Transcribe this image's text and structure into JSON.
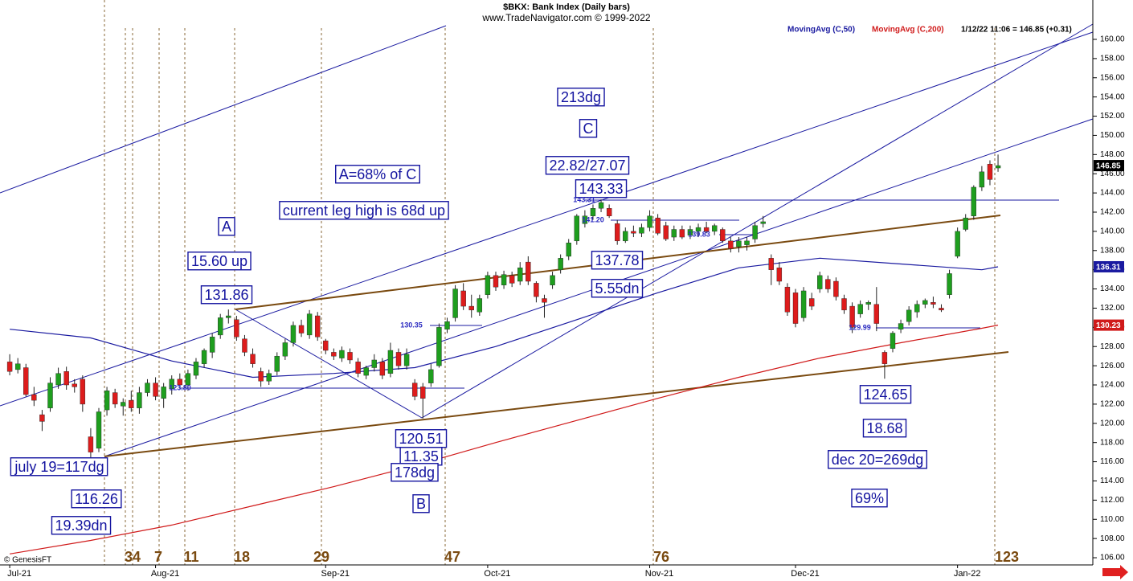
{
  "chart_data": {
    "type": "candlestick",
    "title": "$BKX:  Bank Index  (Daily bars)",
    "subtitle": "www.TradeNavigator.com © 1999-2022",
    "quote": "1/12/22 11:06 = 146.85 (+0.31)",
    "credit": "© GenesisFT",
    "xlim": [
      -1.2,
      133.7
    ],
    "ylim": [
      105.25,
      164.1
    ],
    "xticks": [
      {
        "value": 0,
        "label": "Jul-21"
      },
      {
        "value": 18,
        "label": "Aug-21"
      },
      {
        "value": 39,
        "label": "Sep-21"
      },
      {
        "value": 59,
        "label": "Oct-21"
      },
      {
        "value": 79,
        "label": "Nov-21"
      },
      {
        "value": 97,
        "label": "Dec-21"
      },
      {
        "value": 117,
        "label": "Jan-22"
      }
    ],
    "yticks": [
      {
        "value": 106,
        "label": "106.00"
      },
      {
        "value": 108,
        "label": "108.00"
      },
      {
        "value": 110,
        "label": "110.00"
      },
      {
        "value": 112,
        "label": "112.00"
      },
      {
        "value": 114,
        "label": "114.00"
      },
      {
        "value": 116,
        "label": "116.00"
      },
      {
        "value": 118,
        "label": "118.00"
      },
      {
        "value": 120,
        "label": "120.00"
      },
      {
        "value": 122,
        "label": "122.00"
      },
      {
        "value": 124,
        "label": "124.00"
      },
      {
        "value": 126,
        "label": "126.00"
      },
      {
        "value": 128,
        "label": "128.00"
      },
      {
        "value": 130,
        "label": "130.00"
      },
      {
        "value": 132,
        "label": "132.00"
      },
      {
        "value": 134,
        "label": "134.00"
      },
      {
        "value": 136,
        "label": "136.00"
      },
      {
        "value": 138,
        "label": "138.00"
      },
      {
        "value": 140,
        "label": "140.00"
      },
      {
        "value": 142,
        "label": "142.00"
      },
      {
        "value": 144,
        "label": "144.00"
      },
      {
        "value": 146,
        "label": "146.00"
      },
      {
        "value": 148,
        "label": "148.00"
      },
      {
        "value": 150,
        "label": "150.00"
      },
      {
        "value": 152,
        "label": "152.00"
      },
      {
        "value": 154,
        "label": "154.00"
      },
      {
        "value": 156,
        "label": "156.00"
      },
      {
        "value": 158,
        "label": "158.00"
      },
      {
        "value": 160,
        "label": "160.00"
      }
    ],
    "candles": {
      "up_color": "#1e9e1e",
      "down_color": "#dd1c1c",
      "x": [
        0,
        1,
        2,
        3,
        4,
        5,
        6,
        7,
        8,
        9,
        10,
        11,
        12,
        13,
        14,
        15,
        16,
        17,
        18,
        19,
        20,
        21,
        22,
        23,
        24,
        25,
        26,
        27,
        28,
        29,
        30,
        31,
        32,
        33,
        34,
        35,
        36,
        37,
        38,
        39,
        40,
        41,
        42,
        43,
        44,
        45,
        46,
        47,
        48,
        49,
        50,
        51,
        52,
        53,
        54,
        55,
        56,
        57,
        58,
        59,
        60,
        61,
        62,
        63,
        64,
        65,
        66,
        67,
        68,
        69,
        70,
        71,
        72,
        73,
        74,
        75,
        76,
        77,
        78,
        79,
        80,
        81,
        82,
        83,
        84,
        85,
        86,
        87,
        88,
        89,
        90,
        91,
        92,
        93,
        94,
        95,
        96,
        97,
        98,
        99,
        100,
        101,
        102,
        103,
        104,
        105,
        106,
        107,
        108,
        109,
        110,
        111,
        112,
        113,
        114,
        115,
        116,
        117,
        118,
        119,
        120,
        121,
        122
      ],
      "open": [
        126.4,
        125.6,
        125.8,
        123.0,
        120.9,
        121.6,
        124.0,
        125.4,
        124.1,
        124.6,
        118.6,
        117.4,
        121.4,
        123.2,
        121.8,
        122.4,
        121.6,
        123.2,
        124.2,
        122.6,
        123.6,
        124.6,
        124.0,
        125.0,
        126.2,
        127.4,
        129.2,
        131.0,
        130.8,
        128.8,
        127.2,
        125.4,
        124.4,
        125.4,
        127.0,
        128.4,
        130.2,
        129.2,
        131.2,
        128.6,
        127.4,
        126.8,
        127.4,
        126.4,
        125.0,
        125.8,
        126.4,
        125.2,
        127.4,
        126.0,
        124.2,
        123.8,
        124.2,
        126.0,
        129.8,
        131.0,
        133.8,
        132.2,
        131.6,
        133.4,
        135.4,
        134.4,
        135.4,
        134.8,
        136.8,
        134.6,
        133.0,
        134.4,
        136.0,
        137.4,
        139.0,
        140.8,
        141.6,
        142.4,
        142.4,
        140.8,
        139.0,
        140.0,
        139.8,
        140.4,
        141.4,
        140.6,
        139.4,
        140.2,
        139.6,
        140.0,
        140.4,
        140.0,
        140.2,
        139.0,
        138.4,
        138.6,
        139.2,
        140.8,
        137.2,
        136.2,
        134.2,
        133.6,
        131.0,
        133.0,
        134.0,
        135.0,
        134.8,
        133.0,
        132.2,
        131.4,
        132.4,
        132.4,
        127.4,
        127.8,
        129.8,
        130.6,
        131.6,
        132.4,
        132.6,
        132.0,
        133.4,
        137.4,
        140.2,
        141.6,
        144.6,
        147.0,
        146.6
      ],
      "high": [
        127.2,
        126.8,
        126.2,
        123.8,
        121.4,
        124.8,
        125.8,
        125.9,
        124.6,
        125.0,
        119.5,
        121.6,
        123.8,
        123.6,
        122.6,
        123.4,
        123.8,
        124.6,
        124.8,
        124.2,
        125.0,
        125.2,
        125.6,
        126.8,
        127.8,
        129.4,
        131.4,
        131.86,
        131.2,
        129.2,
        127.8,
        125.8,
        125.6,
        127.4,
        128.8,
        130.6,
        130.8,
        131.8,
        131.6,
        128.8,
        127.8,
        128.0,
        127.8,
        126.8,
        126.0,
        127.2,
        126.8,
        128.4,
        127.8,
        127.8,
        124.6,
        124.2,
        126.2,
        130.4,
        131.0,
        134.4,
        134.6,
        133.4,
        133.4,
        135.8,
        135.8,
        135.9,
        135.8,
        136.8,
        137.4,
        134.8,
        133.4,
        135.8,
        137.6,
        139.2,
        141.8,
        142.2,
        142.8,
        143.33,
        142.8,
        141.2,
        140.4,
        140.6,
        140.8,
        142.2,
        141.8,
        141.0,
        140.6,
        140.6,
        140.6,
        140.8,
        141.0,
        140.8,
        140.4,
        139.4,
        139.4,
        139.4,
        141.0,
        141.6,
        137.6,
        136.8,
        134.6,
        134.0,
        134.2,
        133.6,
        135.8,
        135.4,
        135.2,
        133.4,
        132.6,
        132.8,
        132.8,
        134.2,
        127.6,
        129.6,
        130.8,
        132.2,
        132.8,
        133.0,
        133.2,
        132.4,
        136.0,
        140.4,
        141.8,
        144.8,
        146.8,
        147.4,
        148.0
      ],
      "low": [
        125.0,
        125.2,
        122.8,
        121.8,
        119.2,
        121.2,
        123.6,
        123.5,
        123.2,
        121.2,
        116.26,
        117.0,
        120.8,
        121.6,
        120.8,
        121.2,
        121.0,
        122.8,
        122.4,
        121.6,
        123.0,
        123.6,
        123.4,
        124.6,
        125.8,
        126.8,
        128.8,
        130.4,
        128.6,
        127.0,
        125.8,
        123.8,
        124.0,
        125.0,
        126.6,
        128.0,
        129.0,
        128.8,
        128.6,
        127.2,
        126.6,
        126.4,
        126.2,
        124.8,
        124.6,
        125.4,
        124.6,
        124.8,
        125.6,
        125.6,
        122.4,
        120.51,
        123.8,
        125.8,
        129.4,
        130.6,
        131.8,
        131.0,
        131.2,
        133.0,
        133.8,
        134.0,
        134.2,
        134.4,
        134.4,
        132.6,
        131.0,
        134.0,
        135.6,
        137.0,
        138.6,
        140.4,
        141.2,
        142.0,
        141.4,
        138.6,
        138.8,
        139.4,
        139.4,
        140.0,
        139.6,
        139.0,
        139.0,
        139.2,
        139.2,
        139.4,
        139.8,
        139.6,
        138.8,
        137.8,
        137.8,
        138.0,
        138.8,
        140.4,
        134.4,
        134.4,
        131.2,
        130.0,
        130.6,
        131.8,
        133.6,
        133.6,
        132.8,
        131.4,
        129.4,
        131.0,
        131.8,
        129.6,
        124.65,
        127.4,
        129.4,
        130.2,
        131.0,
        132.0,
        132.0,
        131.6,
        133.0,
        137.2,
        140.0,
        141.2,
        144.2,
        144.8,
        146.2
      ],
      "close": [
        125.4,
        126.2,
        123.0,
        122.4,
        120.2,
        124.2,
        125.2,
        124.0,
        123.8,
        122.0,
        117.0,
        121.2,
        123.4,
        122.0,
        122.2,
        121.6,
        123.2,
        124.2,
        122.8,
        123.8,
        124.6,
        124.0,
        125.2,
        126.4,
        127.6,
        129.0,
        131.0,
        131.2,
        129.0,
        127.4,
        126.2,
        124.4,
        125.2,
        127.0,
        128.4,
        130.2,
        129.4,
        131.4,
        129.0,
        127.6,
        127.0,
        127.6,
        126.6,
        125.2,
        125.8,
        126.6,
        125.0,
        127.6,
        126.0,
        127.2,
        122.8,
        122.6,
        125.6,
        130.0,
        130.6,
        134.0,
        132.2,
        131.8,
        133.0,
        135.4,
        134.2,
        135.5,
        134.6,
        136.2,
        134.8,
        133.2,
        132.6,
        135.4,
        137.2,
        138.8,
        141.6,
        141.6,
        142.4,
        143.0,
        141.6,
        139.0,
        140.0,
        139.8,
        140.4,
        141.6,
        139.8,
        139.2,
        140.2,
        139.4,
        140.2,
        140.4,
        140.0,
        140.6,
        139.0,
        138.2,
        139.0,
        139.0,
        140.6,
        141.0,
        136.0,
        134.8,
        131.6,
        130.4,
        133.8,
        132.2,
        135.4,
        134.0,
        133.2,
        131.8,
        130.0,
        132.4,
        132.6,
        130.4,
        126.2,
        129.4,
        130.4,
        131.8,
        132.4,
        132.8,
        132.4,
        131.8,
        135.6,
        140.0,
        141.4,
        144.6,
        146.2,
        145.4,
        146.85
      ]
    },
    "moving_averages": [
      {
        "name": "MovingAvg (C,50)",
        "color": "#1a1aa0",
        "x": [
          0,
          10,
          20,
          30,
          40,
          50,
          60,
          70,
          80,
          90,
          100,
          110,
          120,
          122
        ],
        "values": [
          129.8,
          128.9,
          126.5,
          124.8,
          125.2,
          125.8,
          128.0,
          130.8,
          133.6,
          136.2,
          137.2,
          136.6,
          136.0,
          136.31
        ]
      },
      {
        "name": "MovingAvg (C,200)",
        "color": "#d01a1a",
        "x": [
          0,
          10,
          20,
          30,
          40,
          50,
          60,
          70,
          80,
          90,
          100,
          110,
          120,
          122
        ],
        "values": [
          106.4,
          107.8,
          109.4,
          111.4,
          113.4,
          115.6,
          118.0,
          120.3,
          122.6,
          124.8,
          126.8,
          128.4,
          129.9,
          130.23
        ]
      }
    ],
    "price_tags": [
      {
        "value": 146.85,
        "color": "#000000"
      },
      {
        "value": 136.31,
        "color": "#1a1aa0"
      },
      {
        "value": 130.23,
        "color": "#d01a1a"
      }
    ],
    "annotations": [
      "213dg",
      "C",
      "A=68% of C",
      "22.82/27.07",
      "143.33",
      "current leg high is 68d up",
      "A",
      "15.60 up",
      "131.86",
      "137.78",
      "5.55dn",
      "120.51",
      "11.35",
      "178dg",
      "B",
      "124.65",
      "18.68",
      "dec 20=269dg",
      "69%",
      "july 19=117dg",
      "116.26",
      "19.39dn"
    ],
    "price_marks": [
      "123.80",
      "130.35",
      "143.31",
      "141.20",
      "139.83",
      "129.99"
    ],
    "cycle_labels": [
      "34",
      "7",
      "11",
      "18",
      "29",
      "47",
      "76",
      "123"
    ]
  }
}
